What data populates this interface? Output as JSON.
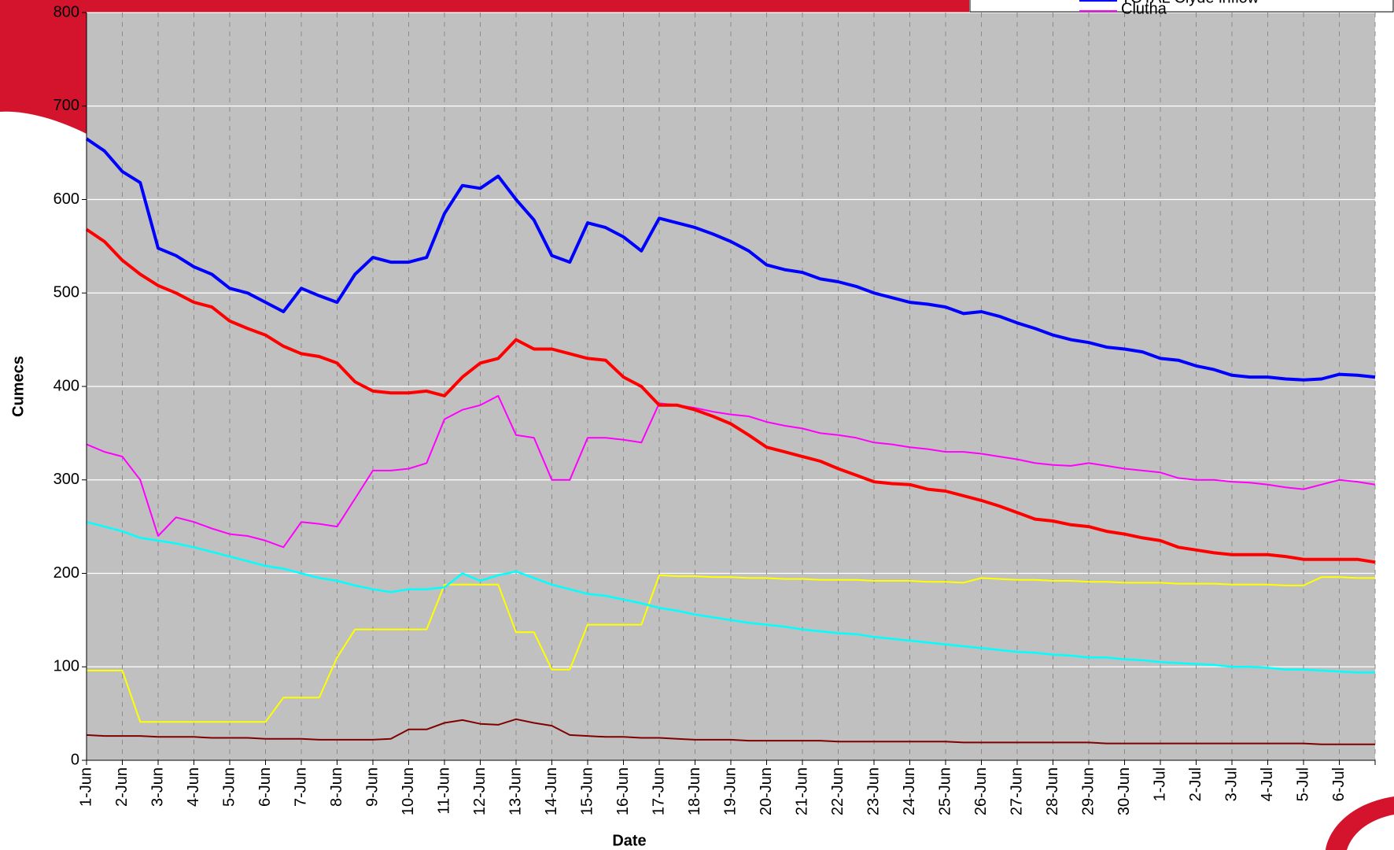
{
  "chart_data": {
    "type": "line",
    "y_label": "Cumecs",
    "x_label": "Date",
    "categories": [
      "1-Jun",
      null,
      "2-Jun",
      null,
      "3-Jun",
      null,
      "4-Jun",
      null,
      "5-Jun",
      null,
      "6-Jun",
      null,
      "7-Jun",
      null,
      "8-Jun",
      null,
      "9-Jun",
      null,
      "10-Jun",
      null,
      "11-Jun",
      null,
      "12-Jun",
      null,
      "13-Jun",
      null,
      "14-Jun",
      null,
      "15-Jun",
      null,
      "16-Jun",
      null,
      "17-Jun",
      null,
      "18-Jun",
      null,
      "19-Jun",
      null,
      "20-Jun",
      null,
      "21-Jun",
      null,
      "22-Jun",
      null,
      "23-Jun",
      null,
      "24-Jun",
      null,
      "25-Jun",
      null,
      "26-Jun",
      null,
      "27-Jun",
      null,
      "28-Jun",
      null,
      "29-Jun",
      null,
      "30-Jun",
      null,
      "1-Jul",
      null,
      "2-Jul",
      null,
      "3-Jul",
      null,
      "4-Jul",
      null,
      "5-Jul",
      null,
      "6-Jul",
      null,
      null
    ],
    "ylim": [
      0,
      800
    ],
    "yticks": [
      0,
      100,
      200,
      300,
      400,
      500,
      600,
      700,
      800
    ],
    "grid": true,
    "legend": "top-right",
    "series": [
      {
        "name": "TOTAL Clyde inflow",
        "color": "#0000ff",
        "width": 4,
        "values": [
          665,
          652,
          630,
          618,
          548,
          540,
          528,
          520,
          505,
          500,
          490,
          480,
          505,
          497,
          490,
          520,
          538,
          533,
          533,
          538,
          585,
          615,
          612,
          625,
          600,
          578,
          540,
          533,
          575,
          570,
          560,
          545,
          580,
          575,
          570,
          563,
          555,
          545,
          530,
          525,
          522,
          515,
          512,
          507,
          500,
          495,
          490,
          488,
          485,
          478,
          480,
          475,
          468,
          462,
          455,
          450,
          447,
          442,
          440,
          437,
          430,
          428,
          422,
          418,
          412,
          410,
          410,
          408,
          407,
          408,
          413,
          412,
          410
        ]
      },
      {
        "color": "#ff0000",
        "width": 4,
        "values": [
          568,
          555,
          535,
          520,
          508,
          500,
          490,
          485,
          470,
          462,
          455,
          443,
          435,
          432,
          425,
          405,
          395,
          393,
          393,
          395,
          390,
          410,
          425,
          430,
          450,
          440,
          440,
          435,
          430,
          428,
          410,
          400,
          380,
          380,
          375,
          368,
          360,
          348,
          335,
          330,
          325,
          320,
          312,
          305,
          298,
          296,
          295,
          290,
          288,
          283,
          278,
          272,
          265,
          258,
          256,
          252,
          250,
          245,
          242,
          238,
          235,
          228,
          225,
          222,
          220,
          220,
          220,
          218,
          215,
          215,
          215,
          215,
          212
        ]
      },
      {
        "name": "Clutha",
        "color": "#ff00ff",
        "width": 2,
        "values": [
          338,
          330,
          325,
          300,
          240,
          260,
          255,
          248,
          242,
          240,
          235,
          228,
          255,
          253,
          250,
          280,
          310,
          310,
          312,
          318,
          365,
          375,
          380,
          390,
          348,
          345,
          300,
          300,
          345,
          345,
          343,
          340,
          382,
          380,
          377,
          373,
          370,
          368,
          362,
          358,
          355,
          350,
          348,
          345,
          340,
          338,
          335,
          333,
          330,
          330,
          328,
          325,
          322,
          318,
          316,
          315,
          318,
          315,
          312,
          310,
          308,
          302,
          300,
          300,
          298,
          297,
          295,
          292,
          290,
          295,
          300,
          298,
          295
        ]
      },
      {
        "color": "#00ffff",
        "width": 2.5,
        "values": [
          255,
          250,
          245,
          238,
          235,
          232,
          228,
          223,
          218,
          213,
          208,
          205,
          200,
          195,
          192,
          187,
          183,
          180,
          183,
          183,
          185,
          200,
          192,
          198,
          202,
          195,
          188,
          183,
          178,
          176,
          172,
          168,
          163,
          160,
          156,
          153,
          150,
          147,
          145,
          143,
          140,
          138,
          136,
          135,
          132,
          130,
          128,
          126,
          124,
          122,
          120,
          118,
          116,
          115,
          113,
          112,
          110,
          110,
          108,
          107,
          105,
          104,
          103,
          102,
          100,
          100,
          99,
          97,
          97,
          96,
          95,
          94,
          94
        ]
      },
      {
        "color": "#ffff00",
        "width": 2,
        "values": [
          96,
          96,
          96,
          41,
          41,
          41,
          41,
          41,
          41,
          41,
          41,
          67,
          67,
          67,
          110,
          140,
          140,
          140,
          140,
          140,
          188,
          188,
          188,
          188,
          137,
          137,
          97,
          97,
          145,
          145,
          145,
          145,
          198,
          197,
          197,
          196,
          196,
          195,
          195,
          194,
          194,
          193,
          193,
          193,
          192,
          192,
          192,
          191,
          191,
          190,
          195,
          194,
          193,
          193,
          192,
          192,
          191,
          191,
          190,
          190,
          190,
          189,
          189,
          189,
          188,
          188,
          188,
          187,
          187,
          196,
          196,
          195,
          195
        ]
      },
      {
        "color": "#800000",
        "width": 2,
        "values": [
          27,
          26,
          26,
          26,
          25,
          25,
          25,
          24,
          24,
          24,
          23,
          23,
          23,
          22,
          22,
          22,
          22,
          23,
          33,
          33,
          40,
          43,
          39,
          38,
          44,
          40,
          37,
          27,
          26,
          25,
          25,
          24,
          24,
          23,
          22,
          22,
          22,
          21,
          21,
          21,
          21,
          21,
          20,
          20,
          20,
          20,
          20,
          20,
          20,
          19,
          19,
          19,
          19,
          19,
          19,
          19,
          19,
          18,
          18,
          18,
          18,
          18,
          18,
          18,
          18,
          18,
          18,
          18,
          18,
          17,
          17,
          17,
          17
        ]
      }
    ]
  }
}
